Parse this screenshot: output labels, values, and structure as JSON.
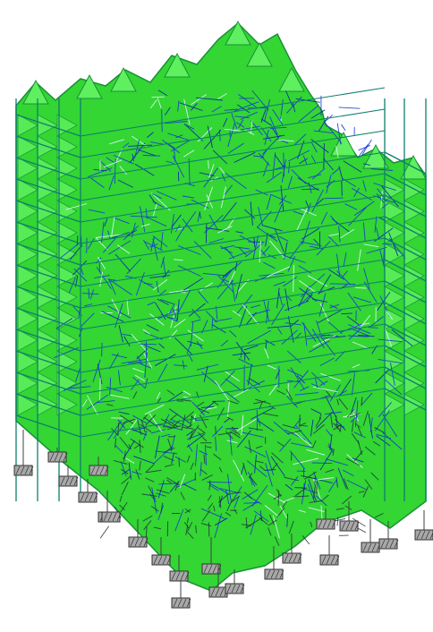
{
  "diagram": {
    "kind": "3d-structural-frame-model",
    "visible_text": "",
    "colors": {
      "background": "#ffffff",
      "face_fill": "#33d633",
      "face_fill_light": "#5ef05e",
      "face_edge": "#1b8f3a",
      "frame_member": "#0f7f6e",
      "interior_mesh": "#1736d6",
      "interior_mesh_dark": "#0c1fa8",
      "highlight": "#e8f4ff",
      "support_block": "#a8a8a8",
      "support_block_edge": "#303030",
      "support_post": "#404040"
    },
    "icons": {
      "support": "fixed-support-block-icon"
    }
  }
}
